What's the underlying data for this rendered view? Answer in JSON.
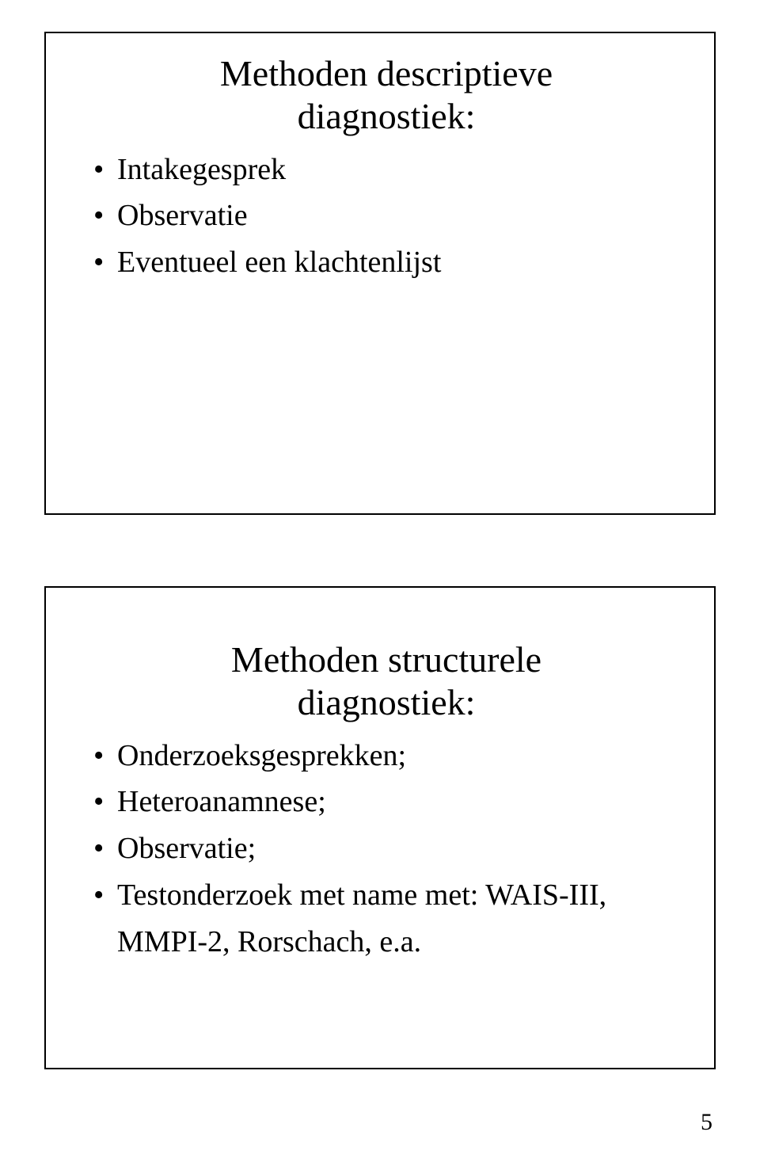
{
  "page_number": "5",
  "slide1": {
    "title_line1": "Methoden descriptieve",
    "title_line2": "diagnostiek:",
    "bullets": [
      "Intakegesprek",
      "Observatie",
      "Eventueel een klachtenlijst"
    ]
  },
  "slide2": {
    "title_line1": "Methoden structurele",
    "title_line2": "diagnostiek:",
    "bullets": [
      "Onderzoeksgesprekken;",
      "Heteroanamnese;",
      "Observatie;",
      "Testonderzoek met name met: WAIS-III, MMPI-2, Rorschach, e.a."
    ]
  }
}
